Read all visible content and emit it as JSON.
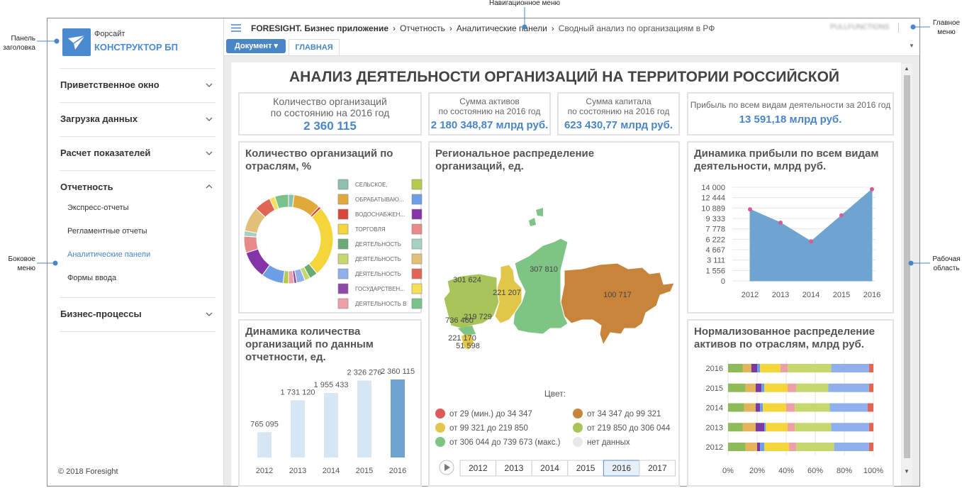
{
  "callouts": {
    "navigation": "Навигационное меню",
    "title_panel": [
      "Панель",
      "заголовка"
    ],
    "main_menu": [
      "Главное",
      "меню"
    ],
    "side_menu": [
      "Боковое",
      "меню"
    ],
    "work_area": [
      "Рабочая",
      "область"
    ]
  },
  "header": {
    "logo_top": "Форсайт",
    "logo_bottom": "КОНСТРУКТОР БП"
  },
  "breadcrumb": [
    "FORESIGHT. Бизнес приложение",
    "Отчетность",
    "Аналитические панели",
    "Сводный анализ по организациям в РФ"
  ],
  "user": "PULLFUNCTIONS",
  "toolbar": {
    "document_button": "Документ",
    "tab": "ГЛАВНАЯ"
  },
  "sidebar": {
    "items": [
      {
        "label": "Приветственное окно"
      },
      {
        "label": "Загрузка данных"
      },
      {
        "label": "Расчет показателей"
      },
      {
        "label": "Отчетность",
        "expanded": true,
        "children": [
          {
            "label": "Экспресс-отчеты"
          },
          {
            "label": "Регламентные отчеты"
          },
          {
            "label": "Аналитические панели",
            "active": true
          },
          {
            "label": "Формы ввода"
          }
        ]
      },
      {
        "label": "Бизнес-процессы"
      }
    ],
    "footer": "© 2018 Foresight"
  },
  "dashboard": {
    "title": "АНАЛИЗ ДЕЯТЕЛЬНОСТИ ОРГАНИЗАЦИЙ НА ТЕРРИТОРИИ РОССИЙСКОЙ",
    "kpis": [
      {
        "lines": [
          "Количество организаций",
          "по состоянию на 2016 год"
        ],
        "value": "2 360 115"
      },
      {
        "lines": [
          "Сумма активов",
          "по состоянию на 2016 год"
        ],
        "value": "2 180 348,87 млрд руб."
      },
      {
        "lines": [
          "Сумма капитала",
          "по состоянию на 2016 год"
        ],
        "value": "623 430,77 млрд руб."
      },
      {
        "lines": [
          "Прибыль по всем видам деятельности за 2016 год"
        ],
        "value": "13 591,18 млрд руб."
      }
    ]
  },
  "map": {
    "title": [
      "Региональное распределение",
      "организаций, ед."
    ],
    "labels": [
      "307 810",
      "100 717",
      "301 624",
      "221 207",
      "219 729",
      "736 460",
      "221 170",
      "51 598"
    ],
    "legend_title": "Цвет:",
    "legend": [
      {
        "label": "от 29 (мин.) до 34 347",
        "color": "#de5a5a"
      },
      {
        "label": "от 34 347 до 99 321",
        "color": "#c8843a"
      },
      {
        "label": "от 99 321 до 219 850",
        "color": "#e2c64a"
      },
      {
        "label": "от 219 850 до 306 044",
        "color": "#a8c45a"
      },
      {
        "label": "от 306 044 до 739 673 (макс.)",
        "color": "#7ec484"
      },
      {
        "label": "нет данных",
        "color": "#e8e8e8"
      }
    ],
    "years": [
      "2012",
      "2013",
      "2014",
      "2015",
      "2016",
      "2017"
    ],
    "selected_index": 4
  },
  "chart_data": [
    {
      "type": "pie",
      "donut": true,
      "title": [
        "Количество организаций по",
        "отраслям, %"
      ],
      "categories": [
        "СЕЛЬСКОЕ,",
        "ОБРАБАТЫВАЮ...",
        "ВОДОСНАБЖЕН...",
        "ТОРГОВЛЯ",
        "ДЕЯТЕЛЬНОСТЬ",
        "ДЕЯТЕЛЬНОСТЬ",
        "ДЕЯТЕЛЬНОСТЬ",
        "ГОСУДАРСТВЕН...",
        "ДЕЯТЕЛЬНОСТЬ В",
        null,
        null,
        null,
        null,
        null,
        null,
        null,
        null,
        null
      ],
      "values": [
        2,
        10,
        1,
        26,
        3,
        2,
        3,
        1,
        2,
        2,
        8,
        10,
        6,
        2,
        9,
        6,
        2,
        5
      ],
      "colors": [
        "#8fbfb0",
        "#e0a93a",
        "#d9473b",
        "#f5d63a",
        "#6aaa74",
        "#c5d86d",
        "#8fb0ec",
        "#8e4aa8",
        "#eda0a8",
        "#b5c94a",
        "#6d9ee8",
        "#8535a8",
        "#e98a8a",
        "#a8cfc4",
        "#e3c07a",
        "#e06555",
        "#f5e05a",
        "#7ac18a"
      ]
    },
    {
      "type": "bar",
      "title": [
        "Динамика количества",
        "организаций по данным",
        "отчетности, ед."
      ],
      "categories": [
        "2012",
        "2013",
        "2014",
        "2015",
        "2016"
      ],
      "values": [
        765095,
        1731120,
        1955433,
        2326276,
        2360115
      ],
      "value_labels": [
        "765 095",
        "1 731 120",
        "1 955 433",
        "2 326 276",
        "2 360 115"
      ],
      "colors": [
        "#d6e6f3",
        "#d6e6f3",
        "#d6e6f3",
        "#d6e6f3",
        "#6fa3d0"
      ]
    },
    {
      "type": "area",
      "title": [
        "Динамика прибыли по всем видам",
        "деятельности, млрд руб."
      ],
      "categories": [
        "2012",
        "2013",
        "2014",
        "2015",
        "2016"
      ],
      "values": [
        10700,
        8700,
        5900,
        9800,
        13700
      ],
      "color": "#6fa3d0",
      "marker_color": "#d45c9a",
      "ylim": [
        0,
        14000
      ],
      "yticks": [
        0,
        {
          "value": 1556,
          "label": "1 556"
        },
        {
          "value": 3111,
          "label": "3 111"
        },
        {
          "value": 4667,
          "label": "4 667"
        },
        {
          "value": 6222,
          "label": "6 222"
        },
        {
          "value": 7778,
          "label": "7 778"
        },
        {
          "value": 9333,
          "label": "9 333"
        },
        {
          "value": 10889,
          "label": "10 889"
        },
        {
          "value": 12444,
          "label": "12 444"
        },
        {
          "value": 14000,
          "label": "14 000"
        }
      ],
      "grid": true
    },
    {
      "type": "stacked_bar",
      "orientation": "horizontal",
      "normalized": true,
      "title": [
        "Нормализованное распределение",
        "активов по отраслям, млрд руб."
      ],
      "categories": [
        "2016",
        "2015",
        "2014",
        "2013",
        "2012"
      ],
      "series": [
        {
          "color": "#8dbb5a",
          "values": [
            10,
            12,
            11,
            10,
            12
          ]
        },
        {
          "color": "#e3b45c",
          "values": [
            6,
            7,
            8,
            9,
            8
          ]
        },
        {
          "color": "#7a3aa0",
          "values": [
            4,
            4,
            3,
            6,
            2
          ]
        },
        {
          "color": "#6d9ee8",
          "values": [
            2,
            2,
            2,
            1,
            3
          ]
        },
        {
          "color": "#f5d63a",
          "values": [
            14,
            16,
            16,
            15,
            17
          ]
        },
        {
          "color": "#eda0a8",
          "values": [
            5,
            6,
            6,
            5,
            5
          ]
        },
        {
          "color": "#c5d86d",
          "values": [
            30,
            22,
            24,
            25,
            26
          ]
        },
        {
          "color": "#8fb0ec",
          "values": [
            26,
            28,
            26,
            26,
            24
          ]
        },
        {
          "color": "#e06555",
          "values": [
            3,
            3,
            4,
            3,
            3
          ]
        }
      ],
      "xlim": [
        0,
        100
      ],
      "xticks": [
        {
          "value": 0,
          "label": "0%"
        },
        {
          "value": 20,
          "label": "20%"
        },
        {
          "value": 40,
          "label": "40%"
        },
        {
          "value": 60,
          "label": "60%"
        },
        {
          "value": 80,
          "label": "80%"
        },
        {
          "value": 100,
          "label": "100%"
        }
      ],
      "grid": true
    }
  ]
}
